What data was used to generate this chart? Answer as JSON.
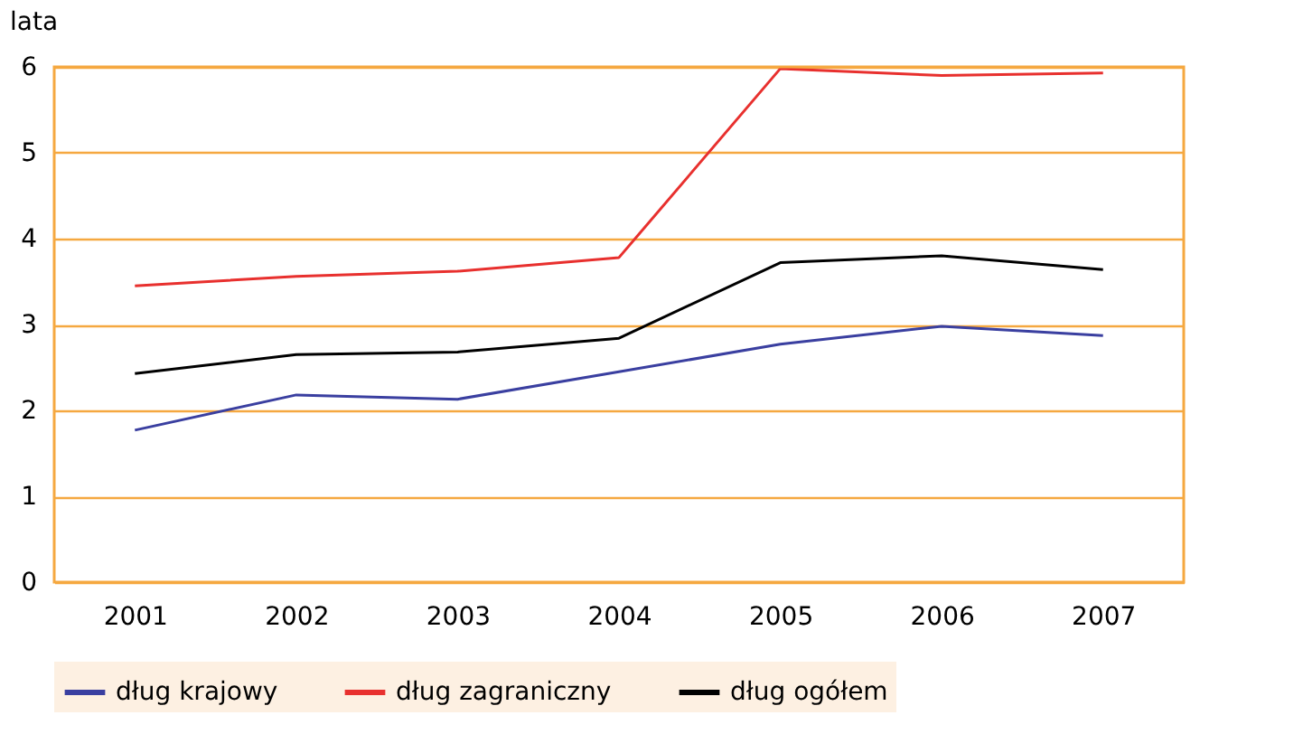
{
  "chart_data": {
    "type": "line",
    "ylabel": "lata",
    "categories": [
      "2001",
      "2002",
      "2003",
      "2004",
      "2005",
      "2006",
      "2007"
    ],
    "series": [
      {
        "name": "dług krajowy",
        "color": "#3a3fa0",
        "values": [
          1.77,
          2.18,
          2.13,
          2.45,
          2.77,
          2.98,
          2.87
        ]
      },
      {
        "name": "dług zagraniczny",
        "color": "#e8302e",
        "values": [
          3.45,
          3.56,
          3.62,
          3.78,
          5.98,
          5.9,
          5.93
        ]
      },
      {
        "name": "dług ogółem",
        "color": "#000000",
        "values": [
          2.43,
          2.65,
          2.68,
          2.84,
          3.72,
          3.8,
          3.64
        ]
      }
    ],
    "ylim": [
      0,
      6
    ],
    "yticks": [
      0,
      1,
      2,
      3,
      4,
      5,
      6
    ],
    "grid": "y",
    "legend": "bottom",
    "marker": "none",
    "line_style": "solid"
  }
}
